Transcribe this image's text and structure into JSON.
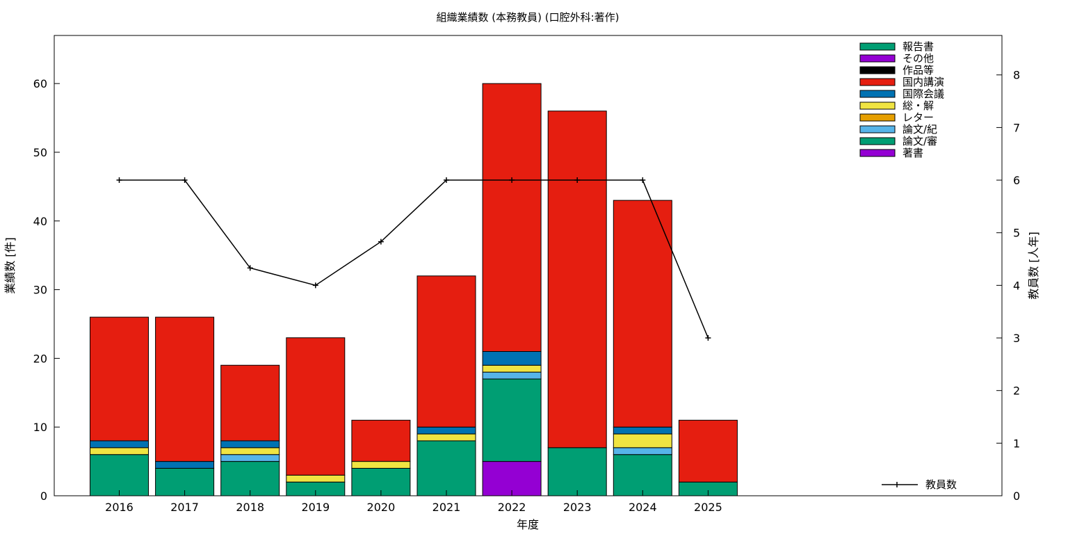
{
  "chart_data": {
    "type": "bar",
    "stacked": true,
    "title": "組織業績数 (本務教員) (口腔外科:著作)",
    "xlabel": "年度",
    "ylabel": "業績数 [件]",
    "y2label": "教員数 [人年]",
    "ylim": [
      0,
      67
    ],
    "yticks": [
      0,
      10,
      20,
      30,
      40,
      50,
      60
    ],
    "y2lim": [
      0,
      8.75
    ],
    "y2ticks": [
      0,
      1,
      2,
      3,
      4,
      5,
      6,
      7,
      8
    ],
    "grid": false,
    "legend_position": "top-right",
    "categories": [
      "2016",
      "2017",
      "2018",
      "2019",
      "2020",
      "2021",
      "2022",
      "2023",
      "2024",
      "2025"
    ],
    "series": [
      {
        "name": "著書",
        "color": "#9400d3",
        "values": [
          0,
          0,
          0,
          0,
          0,
          0,
          5,
          0,
          0,
          0
        ]
      },
      {
        "name": "論文/審",
        "color": "#009e73",
        "values": [
          6,
          4,
          5,
          2,
          4,
          8,
          12,
          7,
          6,
          2
        ]
      },
      {
        "name": "論文/紀",
        "color": "#56b4e9",
        "values": [
          0,
          0,
          1,
          0,
          0,
          0,
          1,
          0,
          1,
          0
        ]
      },
      {
        "name": "レター",
        "color": "#e69f00",
        "values": [
          0,
          0,
          0,
          0,
          0,
          0,
          0,
          0,
          0,
          0
        ]
      },
      {
        "name": "総・解",
        "color": "#f0e442",
        "values": [
          1,
          0,
          1,
          1,
          1,
          1,
          1,
          0,
          2,
          0
        ]
      },
      {
        "name": "国際会議",
        "color": "#0072b2",
        "values": [
          1,
          1,
          1,
          0,
          0,
          1,
          2,
          0,
          1,
          0
        ]
      },
      {
        "name": "国内講演",
        "color": "#e51e10",
        "values": [
          18,
          21,
          11,
          20,
          6,
          22,
          39,
          49,
          33,
          9
        ]
      },
      {
        "name": "作品等",
        "color": "#000000",
        "values": [
          0,
          0,
          0,
          0,
          0,
          0,
          0,
          0,
          0,
          0
        ]
      },
      {
        "name": "その他",
        "color": "#9400d3",
        "values": [
          0,
          0,
          0,
          0,
          0,
          0,
          0,
          0,
          0,
          0
        ]
      },
      {
        "name": "報告書",
        "color": "#009e73",
        "values": [
          0,
          0,
          0,
          0,
          0,
          0,
          0,
          0,
          0,
          0
        ]
      }
    ],
    "legend_order": [
      "報告書",
      "その他",
      "作品等",
      "国内講演",
      "国際会議",
      "総・解",
      "レター",
      "論文/紀",
      "論文/審",
      "著書"
    ],
    "line_series": {
      "name": "教員数",
      "color": "#000000",
      "axis": "y2",
      "values": [
        6,
        6,
        4.33,
        4,
        4.83,
        6,
        6,
        6,
        6,
        3
      ]
    }
  }
}
